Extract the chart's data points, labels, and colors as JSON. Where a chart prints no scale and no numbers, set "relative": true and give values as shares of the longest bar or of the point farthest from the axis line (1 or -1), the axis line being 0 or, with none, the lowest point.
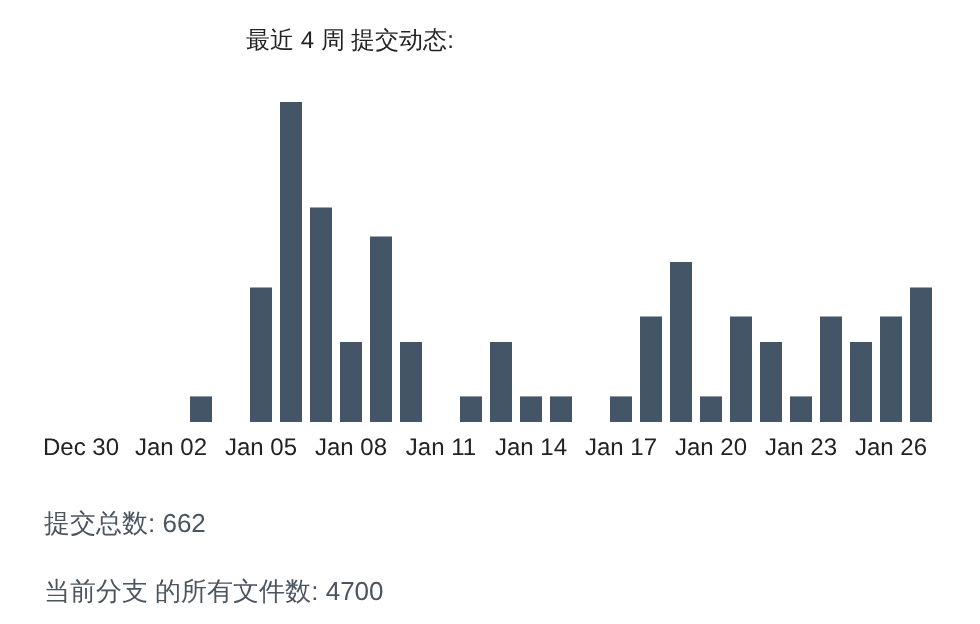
{
  "chart_data": {
    "type": "bar",
    "title": "最近 4 周 提交动态:",
    "relative": true,
    "color": "#435566",
    "categories": [
      "Dec 30",
      null,
      null,
      "Jan 02",
      null,
      null,
      "Jan 05",
      null,
      null,
      "Jan 08",
      null,
      null,
      "Jan 11",
      null,
      null,
      "Jan 14",
      null,
      null,
      "Jan 17",
      null,
      null,
      "Jan 20",
      null,
      null,
      "Jan 23",
      null,
      null,
      "Jan 26",
      null
    ],
    "values": [
      0,
      0,
      0,
      0,
      0.08,
      0,
      0.42,
      1,
      0.67,
      0.25,
      0.58,
      0.25,
      0,
      0.08,
      0.25,
      0.08,
      0.08,
      0,
      0.08,
      0.33,
      0.5,
      0.08,
      0.33,
      0.25,
      0.08,
      0.33,
      0.25,
      0.33,
      0.42
    ],
    "grid": false,
    "annotations": [
      "提交总数: 662",
      "当前分支 的所有文件数: 4700"
    ]
  }
}
